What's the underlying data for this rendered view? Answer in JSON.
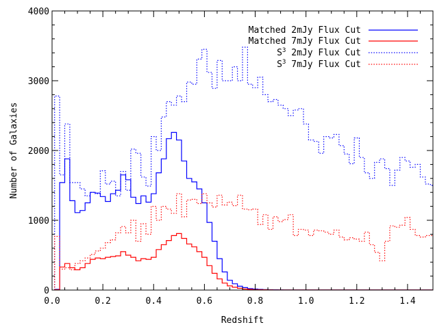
{
  "chart_data": {
    "type": "line",
    "xlabel": "Redshift",
    "ylabel": "Number of Galaxies",
    "xlim": [
      0.0,
      1.5
    ],
    "ylim": [
      0,
      4000
    ],
    "x_ticks": [
      "0.0",
      "0.2",
      "0.4",
      "0.6",
      "0.8",
      "1.0",
      "1.2",
      "1.4"
    ],
    "y_ticks": [
      "0",
      "1000",
      "2000",
      "3000",
      "4000"
    ],
    "legend_position": "top-right",
    "bin_edges": [
      0.01,
      0.03,
      0.05,
      0.07,
      0.09,
      0.11,
      0.13,
      0.15,
      0.17,
      0.19,
      0.21,
      0.23,
      0.25,
      0.27,
      0.29,
      0.31,
      0.33,
      0.35,
      0.37,
      0.39,
      0.41,
      0.43,
      0.45,
      0.47,
      0.49,
      0.51,
      0.53,
      0.55,
      0.57,
      0.59,
      0.61,
      0.63,
      0.65,
      0.67,
      0.69,
      0.71,
      0.73,
      0.75,
      0.77,
      0.79,
      0.81,
      0.83,
      0.85,
      0.87,
      0.89,
      0.91,
      0.93,
      0.95,
      0.97,
      0.99,
      1.01,
      1.03,
      1.05,
      1.07,
      1.09,
      1.11,
      1.13,
      1.15,
      1.17,
      1.19,
      1.21,
      1.23,
      1.25,
      1.27,
      1.29,
      1.31,
      1.33,
      1.35,
      1.37,
      1.39,
      1.41,
      1.43,
      1.45,
      1.47,
      1.49,
      1.5
    ],
    "series": [
      {
        "name": "Matched 2mJy Flux Cut",
        "color": "#0000ff",
        "style": "solid",
        "values": [
          10,
          1540,
          1880,
          1280,
          1110,
          1140,
          1250,
          1400,
          1390,
          1340,
          1270,
          1380,
          1430,
          1650,
          1580,
          1330,
          1240,
          1350,
          1260,
          1380,
          1680,
          1880,
          2170,
          2260,
          2150,
          1850,
          1600,
          1550,
          1450,
          1250,
          970,
          700,
          450,
          260,
          140,
          90,
          55,
          35,
          22,
          15,
          10,
          7,
          5,
          4,
          3,
          2,
          2,
          1,
          1,
          1,
          1,
          1,
          1,
          1,
          1,
          1,
          1,
          1,
          1,
          1,
          1,
          1,
          1,
          1,
          1,
          1,
          1,
          1,
          1,
          1,
          1,
          1,
          1,
          1,
          1
        ]
      },
      {
        "name": "Matched 7mJy Flux Cut",
        "color": "#ff0000",
        "style": "solid",
        "values": [
          5,
          330,
          380,
          320,
          290,
          320,
          380,
          440,
          460,
          450,
          470,
          480,
          490,
          550,
          500,
          470,
          420,
          450,
          440,
          470,
          580,
          650,
          710,
          780,
          810,
          740,
          660,
          620,
          550,
          470,
          350,
          240,
          160,
          100,
          60,
          40,
          25,
          15,
          10,
          7,
          5,
          4,
          3,
          2,
          2,
          1,
          1,
          1,
          1,
          1,
          1,
          1,
          1,
          1,
          1,
          1,
          1,
          1,
          1,
          1,
          1,
          1,
          1,
          1,
          1,
          1,
          1,
          1,
          1,
          1,
          1,
          1,
          1,
          1,
          1
        ]
      },
      {
        "name": "S3 2mJy Flux Cut",
        "color": "#0000ff",
        "style": "dotted",
        "values": [
          2780,
          1650,
          2380,
          1540,
          1540,
          1450,
          1350,
          1400,
          1380,
          1710,
          1520,
          1560,
          1350,
          1700,
          1430,
          2020,
          1960,
          1620,
          1490,
          2200,
          2000,
          2480,
          2700,
          2650,
          2780,
          2700,
          2980,
          2950,
          3310,
          3450,
          3120,
          2890,
          3290,
          3000,
          3000,
          3200,
          3000,
          3480,
          2950,
          2900,
          3050,
          2800,
          2700,
          2730,
          2650,
          2600,
          2500,
          2580,
          2600,
          2380,
          2150,
          2130,
          1960,
          2200,
          2180,
          2230,
          2070,
          1950,
          1810,
          2180,
          1900,
          1680,
          1600,
          1830,
          1880,
          1740,
          1500,
          1720,
          1900,
          1850,
          1760,
          1800,
          1620,
          1520,
          1500
        ]
      },
      {
        "name": "S3 7mJy Flux Cut",
        "color": "#ff0000",
        "style": "dotted",
        "values": [
          770,
          300,
          320,
          290,
          380,
          420,
          460,
          510,
          560,
          600,
          680,
          720,
          820,
          910,
          820,
          1000,
          700,
          950,
          800,
          1200,
          1000,
          1200,
          1160,
          1100,
          1380,
          1050,
          1290,
          1300,
          1240,
          1380,
          1250,
          1190,
          1360,
          1220,
          1260,
          1210,
          1360,
          1160,
          1150,
          1160,
          940,
          1080,
          870,
          1050,
          980,
          1010,
          1080,
          780,
          870,
          860,
          780,
          860,
          850,
          830,
          800,
          860,
          760,
          720,
          750,
          730,
          700,
          830,
          650,
          540,
          420,
          700,
          920,
          900,
          930,
          1040,
          870,
          780,
          760,
          780,
          780
        ]
      }
    ]
  },
  "legend": [
    {
      "text": "Matched 2mJy Flux Cut",
      "color": "#0000ff",
      "style": "solid"
    },
    {
      "text": "Matched 7mJy Flux Cut",
      "color": "#ff0000",
      "style": "solid"
    },
    {
      "pre": "S",
      "sup": "3",
      "text": " 2mJy Flux Cut",
      "color": "#0000ff",
      "style": "dotted"
    },
    {
      "pre": "S",
      "sup": "3",
      "text": " 7mJy Flux Cut",
      "color": "#ff0000",
      "style": "dotted"
    }
  ]
}
